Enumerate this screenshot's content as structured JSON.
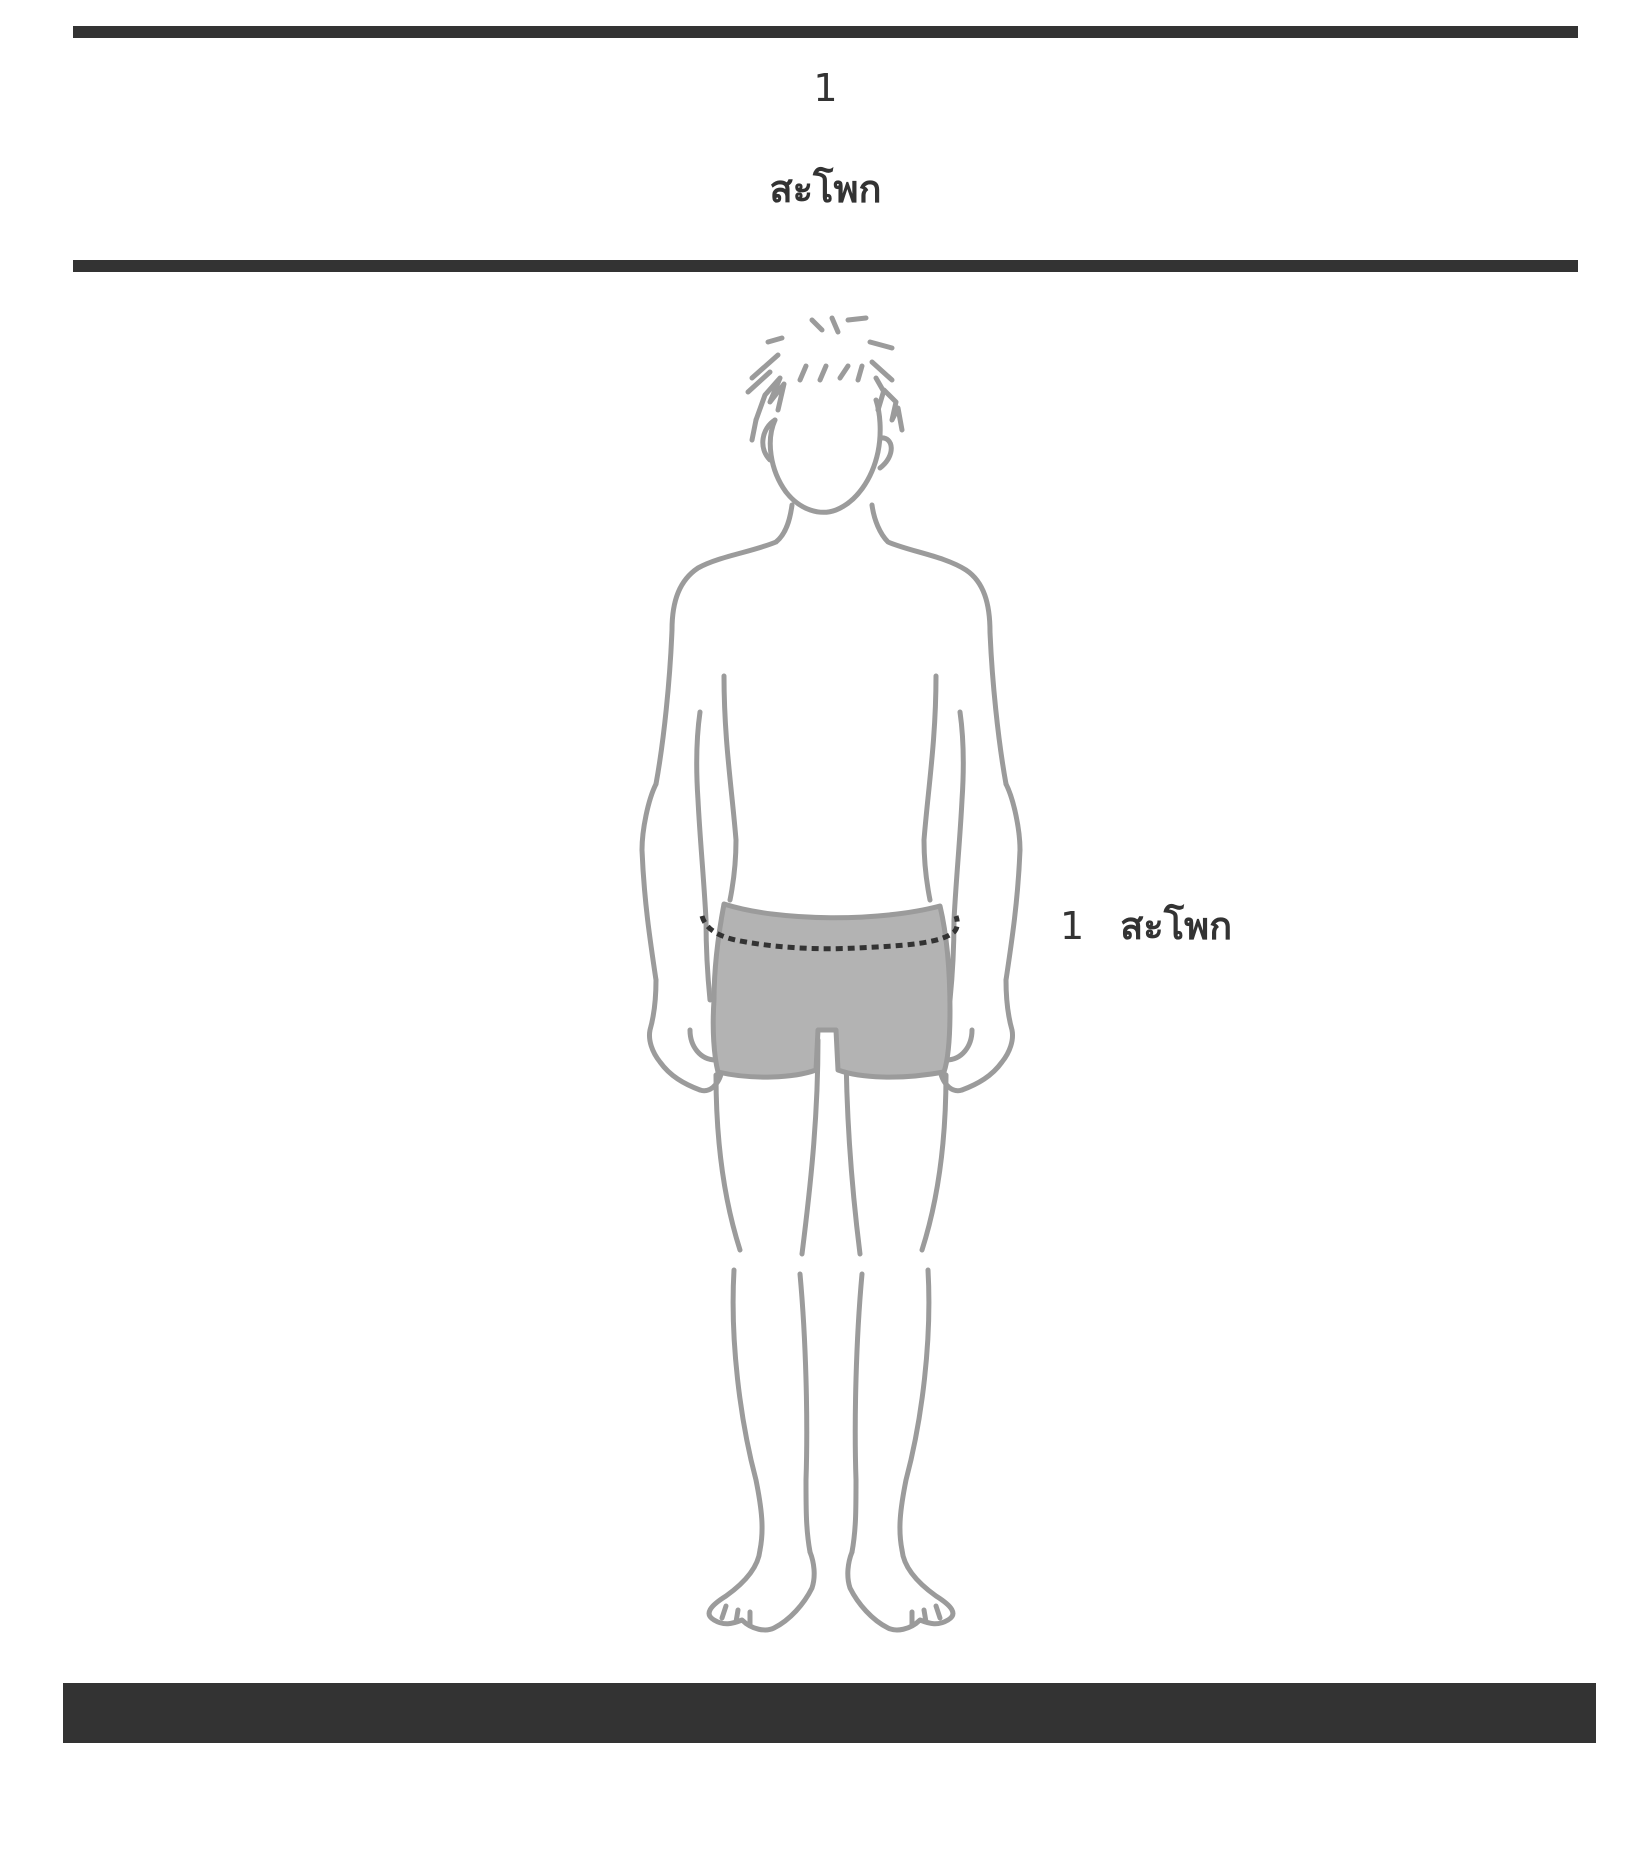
{
  "header": {
    "number": "1",
    "title": "สะโพก"
  },
  "measurement": {
    "number": "1",
    "label": "สะโพก"
  },
  "colors": {
    "rule": "#333333",
    "outline": "#9b9b9b",
    "shorts": "#b3b3b3",
    "measure_line": "#333333"
  },
  "figure": {
    "description_icon": "person-figure-icon"
  }
}
